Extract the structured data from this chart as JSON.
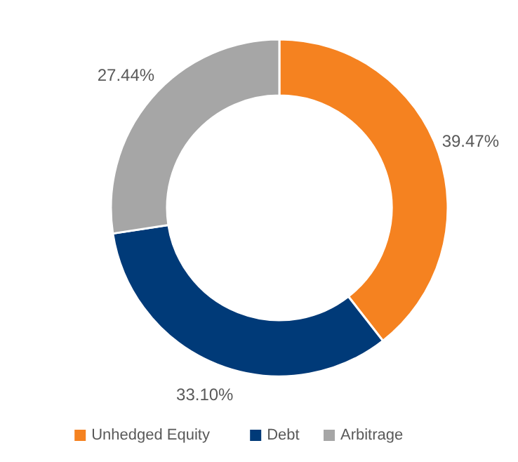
{
  "chart_data": {
    "type": "donut",
    "categories": [
      "Unhedged Equity",
      "Debt",
      "Arbitrage"
    ],
    "values": [
      39.47,
      33.1,
      27.44
    ],
    "colors": [
      "#f58220",
      "#003a78",
      "#a6a6a6"
    ],
    "value_labels": [
      "39.47%",
      "33.10%",
      "27.44%"
    ],
    "legend": "bottom"
  }
}
